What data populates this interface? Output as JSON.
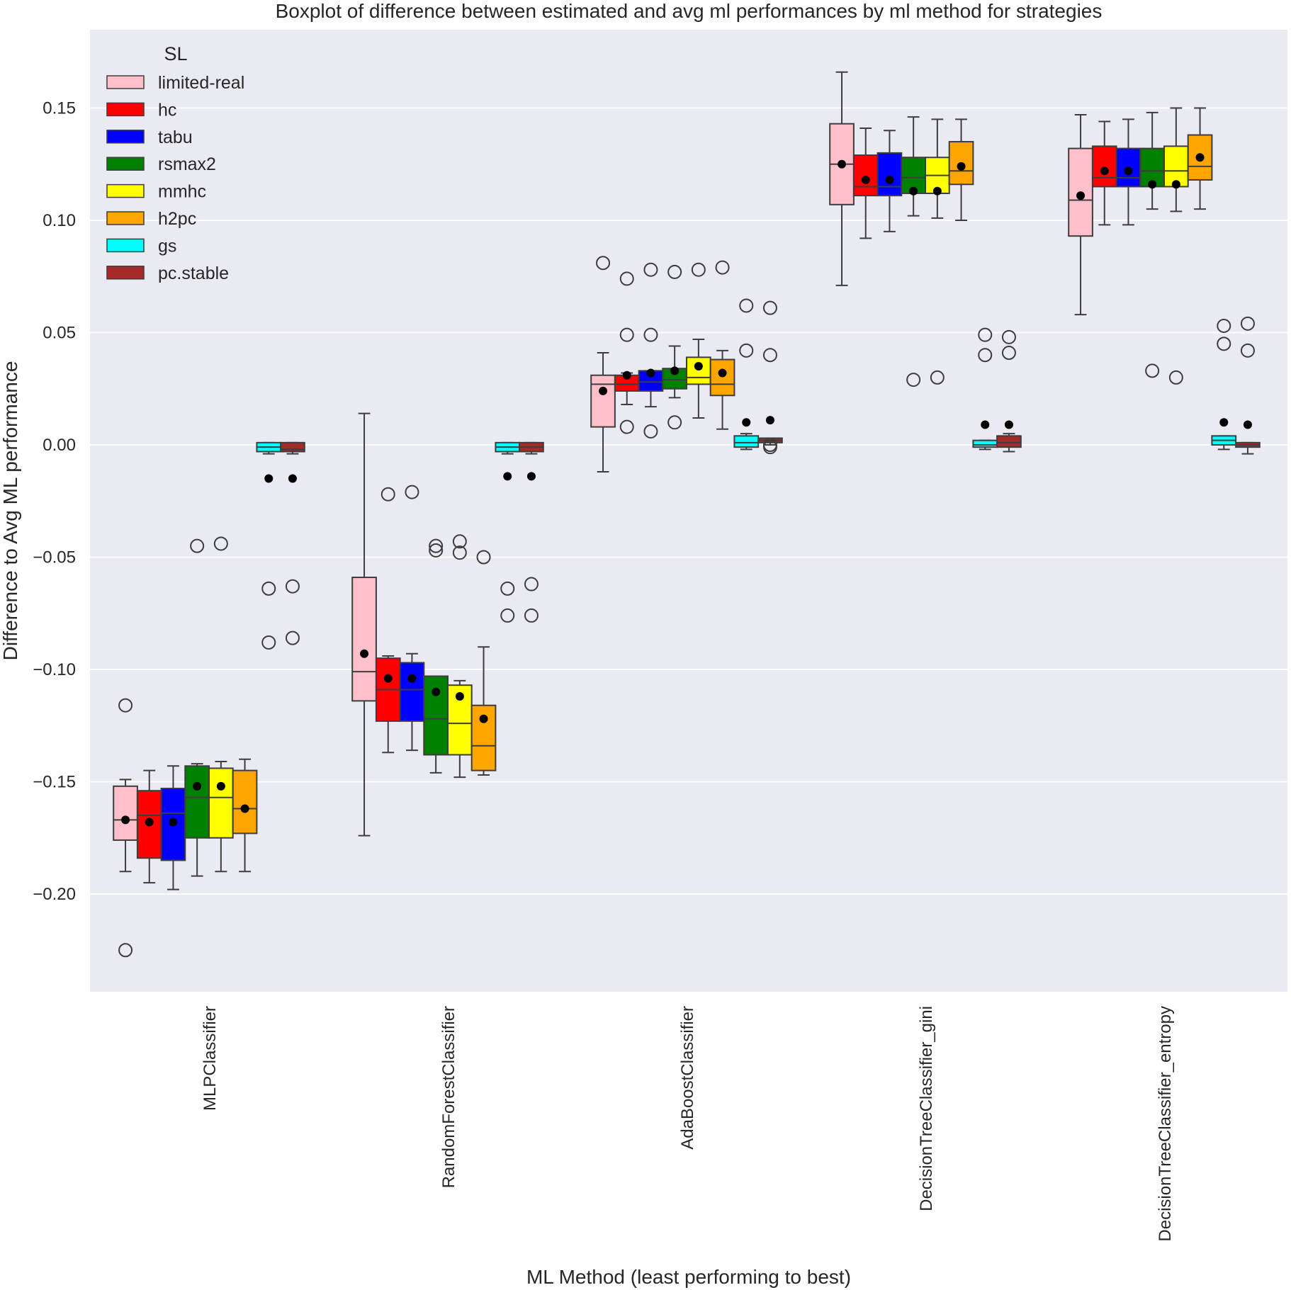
{
  "chart_data": {
    "type": "box",
    "title": "Boxplot of difference between estimated and avg ml performances by ml method for strategies",
    "xlabel": "ML Method (least performing to best)",
    "ylabel": "Difference to Avg ML performance",
    "ylim": [
      -0.245,
      0.185
    ],
    "yticks": [
      0.15,
      0.1,
      0.05,
      0.0,
      -0.05,
      -0.1,
      -0.15,
      -0.2
    ],
    "ytick_labels": [
      "0.15",
      "0.10",
      "0.05",
      "0.00",
      "−0.05",
      "−0.10",
      "−0.15",
      "−0.20"
    ],
    "grid": true,
    "legend": {
      "title": "SL",
      "position": "top-left"
    },
    "categories": [
      "MLPClassifier",
      "RandomForestClassifier",
      "AdaBoostClassifier",
      "DecisionTreeClassifier_gini",
      "DecisionTreeClassifier_entropy"
    ],
    "series": [
      {
        "name": "limited-real",
        "color": "#ffc0cb",
        "boxes": [
          {
            "q1": -0.176,
            "median": -0.167,
            "q3": -0.152,
            "whislo": -0.19,
            "whishi": -0.149,
            "mean": -0.167,
            "fliers": [
              -0.116,
              -0.225
            ]
          },
          {
            "q1": -0.114,
            "median": -0.101,
            "q3": -0.059,
            "whislo": -0.174,
            "whishi": 0.014,
            "mean": -0.093,
            "fliers": []
          },
          {
            "q1": 0.008,
            "median": 0.027,
            "q3": 0.031,
            "whislo": -0.012,
            "whishi": 0.041,
            "mean": 0.024,
            "fliers": [
              0.081
            ]
          },
          {
            "q1": 0.107,
            "median": 0.125,
            "q3": 0.143,
            "whislo": 0.071,
            "whishi": 0.166,
            "mean": 0.125,
            "fliers": []
          },
          {
            "q1": 0.093,
            "median": 0.109,
            "q3": 0.132,
            "whislo": 0.058,
            "whishi": 0.147,
            "mean": 0.111,
            "fliers": []
          }
        ]
      },
      {
        "name": "hc",
        "color": "#ff0000",
        "boxes": [
          {
            "q1": -0.184,
            "median": -0.165,
            "q3": -0.154,
            "whislo": -0.195,
            "whishi": -0.145,
            "mean": -0.168,
            "fliers": []
          },
          {
            "q1": -0.123,
            "median": -0.109,
            "q3": -0.095,
            "whislo": -0.137,
            "whishi": -0.094,
            "mean": -0.104,
            "fliers": [
              -0.022
            ]
          },
          {
            "q1": 0.024,
            "median": 0.027,
            "q3": 0.031,
            "whislo": 0.018,
            "whishi": 0.032,
            "mean": 0.031,
            "fliers": [
              0.074,
              0.049,
              0.008
            ]
          },
          {
            "q1": 0.111,
            "median": 0.115,
            "q3": 0.129,
            "whislo": 0.092,
            "whishi": 0.141,
            "mean": 0.118,
            "fliers": []
          },
          {
            "q1": 0.115,
            "median": 0.119,
            "q3": 0.133,
            "whislo": 0.098,
            "whishi": 0.144,
            "mean": 0.122,
            "fliers": []
          }
        ]
      },
      {
        "name": "tabu",
        "color": "#0000ff",
        "boxes": [
          {
            "q1": -0.185,
            "median": -0.164,
            "q3": -0.153,
            "whislo": -0.198,
            "whishi": -0.143,
            "mean": -0.168,
            "fliers": []
          },
          {
            "q1": -0.123,
            "median": -0.109,
            "q3": -0.097,
            "whislo": -0.136,
            "whishi": -0.093,
            "mean": -0.104,
            "fliers": [
              -0.021
            ]
          },
          {
            "q1": 0.024,
            "median": 0.028,
            "q3": 0.033,
            "whislo": 0.017,
            "whishi": 0.033,
            "mean": 0.032,
            "fliers": [
              0.078,
              0.049,
              0.006
            ]
          },
          {
            "q1": 0.111,
            "median": 0.115,
            "q3": 0.13,
            "whislo": 0.095,
            "whishi": 0.14,
            "mean": 0.118,
            "fliers": []
          },
          {
            "q1": 0.115,
            "median": 0.119,
            "q3": 0.132,
            "whislo": 0.098,
            "whishi": 0.145,
            "mean": 0.122,
            "fliers": []
          }
        ]
      },
      {
        "name": "rsmax2",
        "color": "#008000",
        "boxes": [
          {
            "q1": -0.175,
            "median": -0.157,
            "q3": -0.143,
            "whislo": -0.192,
            "whishi": -0.142,
            "mean": -0.152,
            "fliers": [
              -0.045
            ]
          },
          {
            "q1": -0.138,
            "median": -0.122,
            "q3": -0.103,
            "whislo": -0.146,
            "whishi": -0.103,
            "mean": -0.11,
            "fliers": [
              -0.045,
              -0.047
            ]
          },
          {
            "q1": 0.025,
            "median": 0.029,
            "q3": 0.034,
            "whislo": 0.021,
            "whishi": 0.044,
            "mean": 0.033,
            "fliers": [
              0.077,
              0.01
            ]
          },
          {
            "q1": 0.112,
            "median": 0.119,
            "q3": 0.128,
            "whislo": 0.102,
            "whishi": 0.146,
            "mean": 0.113,
            "fliers": [
              0.029
            ]
          },
          {
            "q1": 0.115,
            "median": 0.122,
            "q3": 0.132,
            "whislo": 0.105,
            "whishi": 0.148,
            "mean": 0.116,
            "fliers": [
              0.033
            ]
          }
        ]
      },
      {
        "name": "mmhc",
        "color": "#ffff00",
        "boxes": [
          {
            "q1": -0.175,
            "median": -0.157,
            "q3": -0.144,
            "whislo": -0.19,
            "whishi": -0.141,
            "mean": -0.152,
            "fliers": [
              -0.044
            ]
          },
          {
            "q1": -0.138,
            "median": -0.124,
            "q3": -0.107,
            "whislo": -0.148,
            "whishi": -0.105,
            "mean": -0.112,
            "fliers": [
              -0.043,
              -0.048
            ]
          },
          {
            "q1": 0.027,
            "median": 0.03,
            "q3": 0.039,
            "whislo": 0.012,
            "whishi": 0.047,
            "mean": 0.035,
            "fliers": [
              0.078
            ]
          },
          {
            "q1": 0.112,
            "median": 0.12,
            "q3": 0.128,
            "whislo": 0.101,
            "whishi": 0.145,
            "mean": 0.113,
            "fliers": [
              0.03
            ]
          },
          {
            "q1": 0.115,
            "median": 0.122,
            "q3": 0.133,
            "whislo": 0.104,
            "whishi": 0.15,
            "mean": 0.116,
            "fliers": [
              0.03
            ]
          }
        ]
      },
      {
        "name": "h2pc",
        "color": "#ffa500",
        "boxes": [
          {
            "q1": -0.173,
            "median": -0.162,
            "q3": -0.145,
            "whislo": -0.19,
            "whishi": -0.14,
            "mean": -0.162,
            "fliers": []
          },
          {
            "q1": -0.145,
            "median": -0.134,
            "q3": -0.116,
            "whislo": -0.147,
            "whishi": -0.09,
            "mean": -0.122,
            "fliers": [
              -0.05
            ]
          },
          {
            "q1": 0.022,
            "median": 0.027,
            "q3": 0.038,
            "whislo": 0.007,
            "whishi": 0.042,
            "mean": 0.032,
            "fliers": [
              0.079
            ]
          },
          {
            "q1": 0.116,
            "median": 0.122,
            "q3": 0.135,
            "whislo": 0.1,
            "whishi": 0.145,
            "mean": 0.124,
            "fliers": []
          },
          {
            "q1": 0.118,
            "median": 0.124,
            "q3": 0.138,
            "whislo": 0.105,
            "whishi": 0.15,
            "mean": 0.128,
            "fliers": []
          }
        ]
      },
      {
        "name": "gs",
        "color": "#00ffff",
        "boxes": [
          {
            "q1": -0.003,
            "median": -0.001,
            "q3": 0.001,
            "whislo": -0.004,
            "whishi": 0.001,
            "mean": -0.015,
            "fliers": [
              -0.064,
              -0.088
            ]
          },
          {
            "q1": -0.003,
            "median": -0.001,
            "q3": 0.001,
            "whislo": -0.004,
            "whishi": 0.001,
            "mean": -0.014,
            "fliers": [
              -0.064,
              -0.076
            ]
          },
          {
            "q1": -0.001,
            "median": 0.001,
            "q3": 0.004,
            "whislo": -0.002,
            "whishi": 0.005,
            "mean": 0.01,
            "fliers": [
              0.062,
              0.042
            ]
          },
          {
            "q1": -0.001,
            "median": 0.0,
            "q3": 0.002,
            "whislo": -0.002,
            "whishi": 0.002,
            "mean": 0.009,
            "fliers": [
              0.049,
              0.04
            ]
          },
          {
            "q1": 0.0,
            "median": 0.002,
            "q3": 0.004,
            "whislo": -0.002,
            "whishi": 0.004,
            "mean": 0.01,
            "fliers": [
              0.053,
              0.045
            ]
          }
        ]
      },
      {
        "name": "pc.stable",
        "color": "#a52a2a",
        "boxes": [
          {
            "q1": -0.003,
            "median": -0.002,
            "q3": 0.001,
            "whislo": -0.004,
            "whishi": 0.001,
            "mean": -0.015,
            "fliers": [
              -0.063,
              -0.086
            ]
          },
          {
            "q1": -0.003,
            "median": -0.001,
            "q3": 0.001,
            "whislo": -0.004,
            "whishi": 0.001,
            "mean": -0.014,
            "fliers": [
              -0.062,
              -0.076
            ]
          },
          {
            "q1": 0.001,
            "median": 0.002,
            "q3": 0.003,
            "whislo": 0.0,
            "whishi": 0.003,
            "mean": 0.011,
            "fliers": [
              0.061,
              0.04,
              0.0,
              -0.001
            ]
          },
          {
            "q1": -0.001,
            "median": 0.001,
            "q3": 0.004,
            "whislo": -0.003,
            "whishi": 0.005,
            "mean": 0.009,
            "fliers": [
              0.048,
              0.041
            ]
          },
          {
            "q1": -0.001,
            "median": 0.0,
            "q3": 0.001,
            "whislo": -0.004,
            "whishi": 0.001,
            "mean": 0.009,
            "fliers": [
              0.054,
              0.042
            ]
          }
        ]
      }
    ]
  }
}
